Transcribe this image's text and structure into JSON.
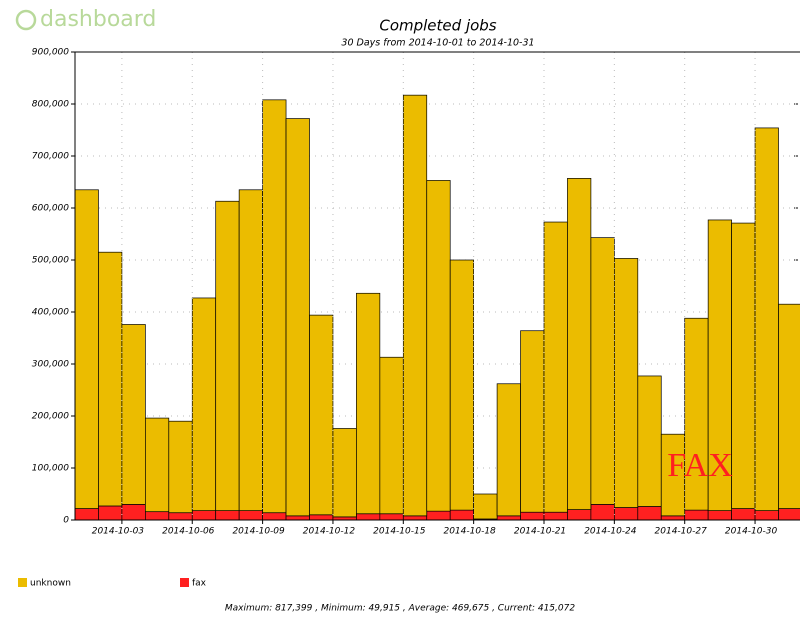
{
  "logo": "dashboard",
  "chart_data": {
    "type": "bar",
    "stacked": true,
    "title": "Completed jobs",
    "subtitle": "30 Days from 2014-10-01 to 2014-10-31",
    "categories": [
      null,
      null,
      "2014-10-03",
      null,
      null,
      "2014-10-06",
      null,
      null,
      "2014-10-09",
      null,
      null,
      "2014-10-12",
      null,
      null,
      "2014-10-15",
      null,
      null,
      "2014-10-18",
      null,
      null,
      "2014-10-21",
      null,
      null,
      "2014-10-24",
      null,
      null,
      "2014-10-27",
      null,
      null,
      "2014-10-30",
      null
    ],
    "series": [
      {
        "name": "unknown",
        "color": "#ebbc00",
        "values": [
          613000,
          488000,
          346000,
          180000,
          176000,
          409000,
          595000,
          617000,
          794000,
          764000,
          384000,
          170000,
          424000,
          301000,
          809000,
          636000,
          481000,
          48000,
          254000,
          349000,
          558000,
          637000,
          513000,
          479000,
          251000,
          157000,
          369000,
          559000,
          549000,
          736000,
          393000
        ]
      },
      {
        "name": "fax",
        "color": "#ff2020",
        "values": [
          22000,
          27000,
          30000,
          16000,
          14000,
          18000,
          18000,
          18000,
          14000,
          8000,
          10000,
          6000,
          12000,
          12000,
          8000,
          17000,
          19000,
          2000,
          8000,
          15000,
          15000,
          20000,
          30000,
          24000,
          26000,
          8000,
          19000,
          18000,
          22000,
          18000,
          22000
        ]
      }
    ],
    "ylim": [
      0,
      900000
    ],
    "yticks": [
      0,
      {
        "value": 100000,
        "label": "100,000"
      },
      {
        "value": 200000,
        "label": "200,000"
      },
      {
        "value": 300000,
        "label": "300,000"
      },
      {
        "value": 400000,
        "label": "400,000"
      },
      {
        "value": 500000,
        "label": "500,000"
      },
      {
        "value": 600000,
        "label": "600,000"
      },
      {
        "value": 700000,
        "label": "700,000"
      },
      {
        "value": 800000,
        "label": "800,000"
      },
      {
        "value": 900000,
        "label": "900,000"
      }
    ],
    "grid": true,
    "annotation": "FAX",
    "footer": "Maximum: 817,399 , Minimum: 49,915 , Average: 469,675 , Current: 415,072"
  }
}
